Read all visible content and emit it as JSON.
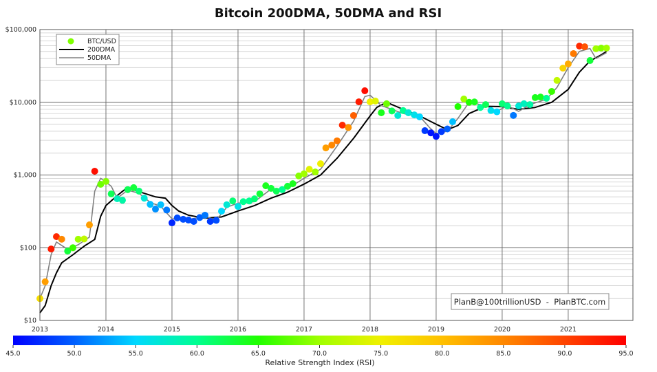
{
  "chart_data": {
    "type": "scatter",
    "title": "Bitcoin 200DMA, 50DMA and RSI",
    "yscale": "log",
    "ylim": [
      10,
      100000
    ],
    "xlim": [
      2013.0,
      2021.98
    ],
    "y_ticks": [
      {
        "v": 10,
        "label": "$10"
      },
      {
        "v": 100,
        "label": "$100"
      },
      {
        "v": 1000,
        "label": "$1,000"
      },
      {
        "v": 10000,
        "label": "$10,000"
      },
      {
        "v": 100000,
        "label": "$100,000"
      }
    ],
    "x_ticks": [
      {
        "v": 2013,
        "label": "2013"
      },
      {
        "v": 2014,
        "label": "2014"
      },
      {
        "v": 2015,
        "label": "2015"
      },
      {
        "v": 2016,
        "label": "2016"
      },
      {
        "v": 2017,
        "label": "2017"
      },
      {
        "v": 2018,
        "label": "2018"
      },
      {
        "v": 2019,
        "label": "2019"
      },
      {
        "v": 2020,
        "label": "2020"
      },
      {
        "v": 2021,
        "label": "2021"
      }
    ],
    "grid": true,
    "legend_position": "top-left",
    "legend": [
      {
        "label": "BTC/USD",
        "color": "#7fff00"
      },
      {
        "label": "200DMA",
        "color": "#000000"
      },
      {
        "label": "50DMA",
        "color": "#808080"
      }
    ],
    "watermark": "PlanB@100trillionUSD  -  PlanBTC.com",
    "colorbar": {
      "label": "Relative Strength Index (RSI)",
      "range": [
        45,
        95
      ],
      "ticks": [
        "45.0",
        "50.0",
        "55.0",
        "60.0",
        "65.0",
        "70.0",
        "75.0",
        "80.0",
        "85.0",
        "90.0",
        "95.0"
      ],
      "colors": [
        "#0000ff",
        "#0060ff",
        "#00d8ff",
        "#00ff90",
        "#20ff00",
        "#a0ff00",
        "#f0f000",
        "#ffc000",
        "#ff8800",
        "#ff4400",
        "#ff0000"
      ]
    },
    "series": [
      {
        "name": "BTC/USD",
        "type": "scatter",
        "x": [
          2013.0,
          2013.08,
          2013.17,
          2013.25,
          2013.33,
          2013.42,
          2013.5,
          2013.58,
          2013.67,
          2013.75,
          2013.83,
          2013.92,
          2014.0,
          2014.08,
          2014.17,
          2014.25,
          2014.33,
          2014.42,
          2014.5,
          2014.58,
          2014.67,
          2014.75,
          2014.83,
          2014.92,
          2015.0,
          2015.08,
          2015.17,
          2015.25,
          2015.33,
          2015.42,
          2015.5,
          2015.58,
          2015.67,
          2015.75,
          2015.83,
          2015.92,
          2016.0,
          2016.08,
          2016.17,
          2016.25,
          2016.33,
          2016.42,
          2016.5,
          2016.58,
          2016.67,
          2016.75,
          2016.83,
          2016.92,
          2017.0,
          2017.08,
          2017.17,
          2017.25,
          2017.33,
          2017.42,
          2017.5,
          2017.58,
          2017.67,
          2017.75,
          2017.83,
          2017.92,
          2018.0,
          2018.08,
          2018.17,
          2018.25,
          2018.33,
          2018.42,
          2018.5,
          2018.58,
          2018.67,
          2018.75,
          2018.83,
          2018.92,
          2019.0,
          2019.08,
          2019.17,
          2019.25,
          2019.33,
          2019.42,
          2019.5,
          2019.58,
          2019.67,
          2019.75,
          2019.83,
          2019.92,
          2020.0,
          2020.08,
          2020.17,
          2020.25,
          2020.33,
          2020.42,
          2020.5,
          2020.58,
          2020.67,
          2020.75,
          2020.83,
          2020.92,
          2021.0,
          2021.08,
          2021.17,
          2021.25,
          2021.33,
          2021.42,
          2021.5,
          2021.58
        ],
        "y": [
          20,
          34,
          96,
          142,
          131,
          90,
          100,
          131,
          132,
          206,
          1127,
          745,
          815,
          550,
          472,
          450,
          630,
          670,
          600,
          480,
          395,
          340,
          390,
          330,
          220,
          257,
          246,
          240,
          230,
          260,
          280,
          230,
          238,
          318,
          390,
          440,
          370,
          430,
          440,
          470,
          550,
          712,
          655,
          600,
          630,
          700,
          760,
          970,
          1040,
          1200,
          1100,
          1430,
          2360,
          2580,
          2950,
          4850,
          4500,
          6580,
          10150,
          14400,
          10150,
          10400,
          7180,
          9550,
          7600,
          6580,
          7700,
          7180,
          6700,
          6300,
          4070,
          3800,
          3400,
          3950,
          4300,
          5400,
          8730,
          11100,
          10000,
          10100,
          8500,
          9300,
          7700,
          7400,
          9550,
          8900,
          6600,
          8900,
          9550,
          9300,
          11600,
          11800,
          11350,
          14100,
          20000,
          29500,
          33700,
          46700,
          59300,
          58000,
          37500,
          54500,
          55700,
          55700
        ],
        "rsi": [
          77,
          83,
          93,
          92,
          85,
          63,
          66,
          70,
          72,
          83,
          94,
          68,
          69,
          62,
          58,
          59,
          62,
          63,
          61,
          57,
          54,
          52,
          54,
          51,
          47,
          49,
          49,
          49,
          49,
          50,
          51,
          48,
          49,
          55,
          57,
          61,
          56,
          60,
          60,
          61,
          63,
          64,
          63,
          62,
          60,
          63,
          64,
          69,
          70,
          74,
          70,
          75,
          83,
          85,
          86,
          92,
          84,
          88,
          93,
          94,
          75,
          74,
          64,
          68,
          62,
          57,
          60,
          57,
          56,
          55,
          48,
          46,
          46,
          48,
          50,
          54,
          65,
          70,
          65,
          64,
          60,
          62,
          56,
          55,
          61,
          60,
          51,
          57,
          58,
          59,
          64,
          64,
          60,
          66,
          72,
          78,
          82,
          86,
          92,
          89,
          63,
          70,
          69,
          70
        ]
      },
      {
        "name": "200DMA",
        "type": "line",
        "color": "#000000",
        "x": [
          2013.0,
          2013.08,
          2013.17,
          2013.25,
          2013.33,
          2013.5,
          2013.67,
          2013.83,
          2013.92,
          2014.0,
          2014.17,
          2014.33,
          2014.5,
          2014.75,
          2014.9,
          2015.0,
          2015.1,
          2015.25,
          2015.5,
          2015.75,
          2016.0,
          2016.25,
          2016.5,
          2016.75,
          2017.0,
          2017.25,
          2017.5,
          2017.75,
          2018.0,
          2018.1,
          2018.25,
          2018.5,
          2018.75,
          2019.0,
          2019.17,
          2019.33,
          2019.5,
          2019.75,
          2020.0,
          2020.25,
          2020.5,
          2020.75,
          2021.0,
          2021.17,
          2021.33,
          2021.5,
          2021.58
        ],
        "y": [
          12.7,
          16,
          30,
          45,
          62,
          80,
          105,
          130,
          270,
          380,
          520,
          680,
          590,
          500,
          480,
          380,
          320,
          280,
          255,
          265,
          320,
          380,
          480,
          580,
          750,
          1000,
          1700,
          3200,
          6500,
          8500,
          10000,
          8000,
          6500,
          5000,
          4200,
          4800,
          7000,
          8800,
          8700,
          8000,
          8500,
          10000,
          15000,
          26000,
          37000,
          45000,
          50000
        ]
      },
      {
        "name": "50DMA",
        "type": "line",
        "color": "#808080",
        "x": [
          2013.0,
          2013.08,
          2013.17,
          2013.25,
          2013.42,
          2013.58,
          2013.75,
          2013.83,
          2013.92,
          2014.0,
          2014.08,
          2014.17,
          2014.33,
          2014.5,
          2014.67,
          2014.83,
          2015.0,
          2015.25,
          2015.5,
          2015.67,
          2015.83,
          2016.0,
          2016.25,
          2016.5,
          2016.75,
          2017.0,
          2017.25,
          2017.5,
          2017.75,
          2017.92,
          2018.0,
          2018.17,
          2018.33,
          2018.5,
          2018.75,
          2018.9,
          2019.0,
          2019.17,
          2019.33,
          2019.5,
          2019.75,
          2019.92,
          2020.08,
          2020.25,
          2020.42,
          2020.67,
          2020.83,
          2021.0,
          2021.17,
          2021.33,
          2021.42,
          2021.58
        ],
        "y": [
          20,
          30,
          80,
          120,
          95,
          110,
          140,
          600,
          900,
          800,
          700,
          480,
          620,
          560,
          420,
          370,
          250,
          245,
          270,
          240,
          360,
          410,
          430,
          640,
          650,
          900,
          1200,
          2500,
          5500,
          12000,
          12500,
          9000,
          8000,
          7000,
          6400,
          4500,
          3700,
          4000,
          6000,
          10000,
          9000,
          7500,
          9000,
          7500,
          9300,
          11000,
          16000,
          30000,
          50000,
          55000,
          40000,
          48000
        ]
      }
    ]
  }
}
